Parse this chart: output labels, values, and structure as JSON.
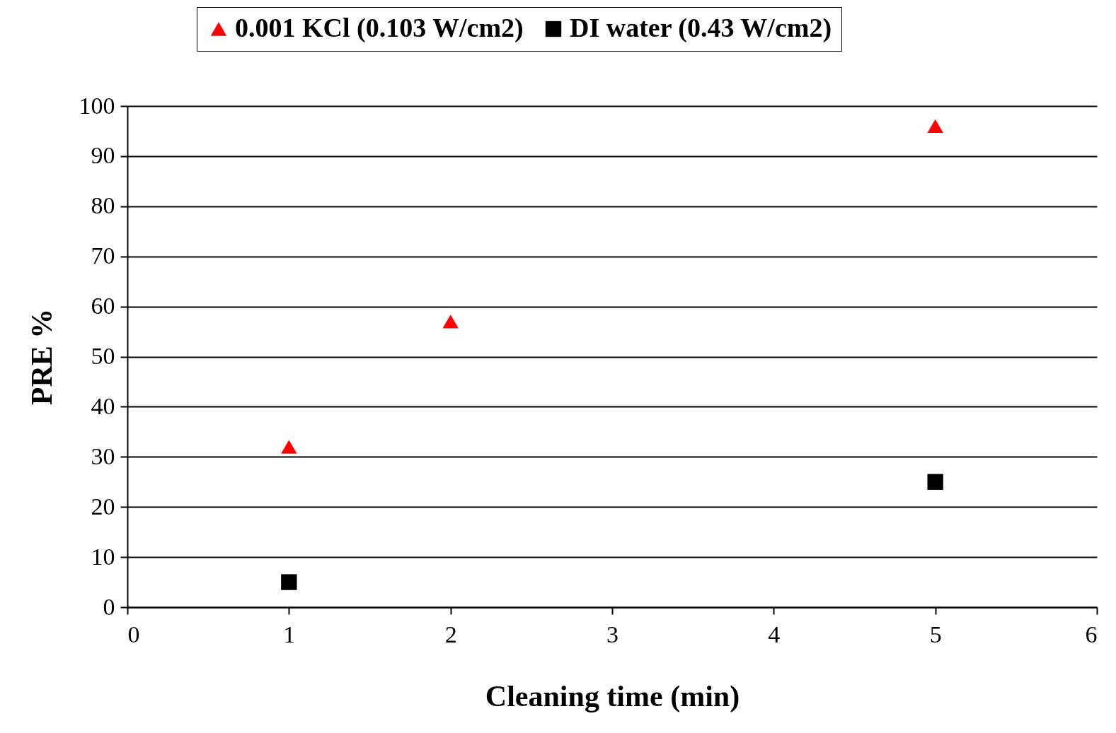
{
  "chart_data": {
    "type": "scatter",
    "xlabel": "Cleaning time (min)",
    "ylabel": "PRE %",
    "xlim": [
      0,
      6
    ],
    "xticks": [
      0,
      1,
      2,
      3,
      4,
      5,
      6
    ],
    "ylim": [
      0,
      100
    ],
    "yticks": [
      0,
      10,
      20,
      30,
      40,
      50,
      60,
      70,
      80,
      90,
      100
    ],
    "grid": "y",
    "legend": "top",
    "series": [
      {
        "name": "0.001 KCl (0.103 W/cm2)",
        "color": "#ff0000",
        "marker": "triangle",
        "x": [
          1,
          2,
          5
        ],
        "values": [
          32,
          57,
          96
        ]
      },
      {
        "name": "DI water (0.43 W/cm2)",
        "color": "#000000",
        "marker": "square",
        "x": [
          1,
          5
        ],
        "values": [
          5,
          25
        ]
      }
    ]
  }
}
